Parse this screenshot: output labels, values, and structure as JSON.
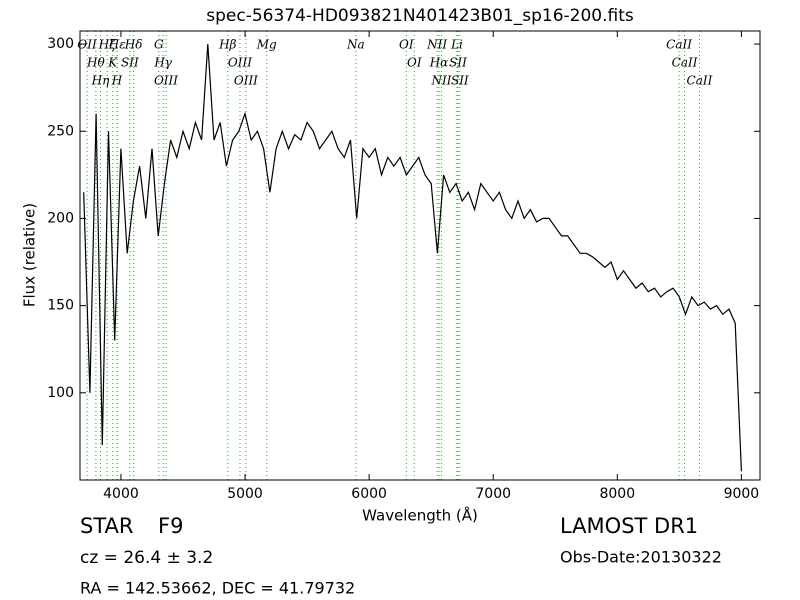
{
  "chart_data": {
    "type": "line",
    "title": "spec-56374-HD093821N401423B01_sp16-200.fits",
    "x_label": "Wavelength (Å)",
    "y_label": "Flux (relative)",
    "color": "#000000",
    "line_color": "#2ca02c",
    "xlim": [
      3670,
      9150
    ],
    "ylim": [
      50,
      307.5
    ],
    "xticks": [
      4000,
      5000,
      6000,
      7000,
      8000,
      9000
    ],
    "yticks": [
      100,
      150,
      200,
      250,
      300
    ],
    "x": [
      3700,
      3750,
      3800,
      3850,
      3900,
      3950,
      4000,
      4050,
      4100,
      4150,
      4200,
      4250,
      4300,
      4350,
      4400,
      4450,
      4500,
      4550,
      4600,
      4650,
      4700,
      4750,
      4800,
      4850,
      4900,
      4950,
      5000,
      5050,
      5100,
      5150,
      5200,
      5250,
      5300,
      5350,
      5400,
      5450,
      5500,
      5550,
      5600,
      5650,
      5700,
      5750,
      5800,
      5850,
      5900,
      5950,
      6000,
      6050,
      6100,
      6150,
      6200,
      6250,
      6300,
      6350,
      6400,
      6450,
      6500,
      6550,
      6600,
      6650,
      6700,
      6750,
      6800,
      6850,
      6900,
      6950,
      7000,
      7050,
      7100,
      7150,
      7200,
      7250,
      7300,
      7350,
      7400,
      7450,
      7500,
      7550,
      7600,
      7650,
      7700,
      7750,
      7800,
      7850,
      7900,
      7950,
      8000,
      8050,
      8100,
      8150,
      8200,
      8250,
      8300,
      8350,
      8400,
      8450,
      8500,
      8550,
      8600,
      8650,
      8700,
      8750,
      8800,
      8850,
      8900,
      8950,
      9000
    ],
    "values": [
      215,
      100,
      260,
      70,
      250,
      130,
      240,
      180,
      210,
      230,
      200,
      240,
      190,
      220,
      245,
      235,
      250,
      240,
      255,
      245,
      300,
      245,
      255,
      230,
      245,
      250,
      260,
      245,
      250,
      240,
      215,
      240,
      250,
      240,
      248,
      245,
      255,
      250,
      240,
      245,
      250,
      240,
      235,
      245,
      200,
      240,
      235,
      240,
      225,
      235,
      230,
      235,
      225,
      230,
      235,
      225,
      220,
      180,
      225,
      215,
      220,
      210,
      215,
      205,
      220,
      215,
      210,
      215,
      205,
      200,
      210,
      200,
      205,
      198,
      200,
      200,
      195,
      190,
      190,
      185,
      180,
      180,
      178,
      175,
      172,
      175,
      165,
      170,
      165,
      160,
      163,
      158,
      160,
      155,
      158,
      160,
      155,
      145,
      155,
      150,
      152,
      148,
      150,
      145,
      148,
      140,
      55
    ],
    "lines": [
      {
        "label": "OII",
        "x": 3727
      },
      {
        "label": "Hθ",
        "x": 3798
      },
      {
        "label": "Hη",
        "x": 3835
      },
      {
        "label": "Hζ",
        "x": 3889
      },
      {
        "label": "K",
        "x": 3934
      },
      {
        "label": "H",
        "x": 3968
      },
      {
        "label": "Hε",
        "x": 3970
      },
      {
        "label": "SII",
        "x": 4072
      },
      {
        "label": "Hδ",
        "x": 4102
      },
      {
        "label": "G",
        "x": 4305
      },
      {
        "label": "Hγ",
        "x": 4340
      },
      {
        "label": "OIII",
        "x": 4363
      },
      {
        "label": "Hβ",
        "x": 4861
      },
      {
        "label": "OIII",
        "x": 4959
      },
      {
        "label": "OIII",
        "x": 5007
      },
      {
        "label": "Mg",
        "x": 5175
      },
      {
        "label": "Na",
        "x": 5893
      },
      {
        "label": "OI",
        "x": 6300
      },
      {
        "label": "OI",
        "x": 6364
      },
      {
        "label": "NII",
        "x": 6548
      },
      {
        "label": "Hα",
        "x": 6563
      },
      {
        "label": "NII",
        "x": 6583
      },
      {
        "label": "Li",
        "x": 6708
      },
      {
        "label": "SII",
        "x": 6716
      },
      {
        "label": "SII",
        "x": 6731
      },
      {
        "label": "CaII",
        "x": 8498
      },
      {
        "label": "CaII",
        "x": 8542
      },
      {
        "label": "CaII",
        "x": 8662
      }
    ]
  },
  "info": {
    "class": "STAR",
    "subclass": "F9",
    "redshift": "cz = 26.4  ± 3.2",
    "coords": "RA = 142.53662, DEC = 41.79732",
    "survey": "LAMOST DR1",
    "obs_date": "Obs-Date:20130322"
  }
}
